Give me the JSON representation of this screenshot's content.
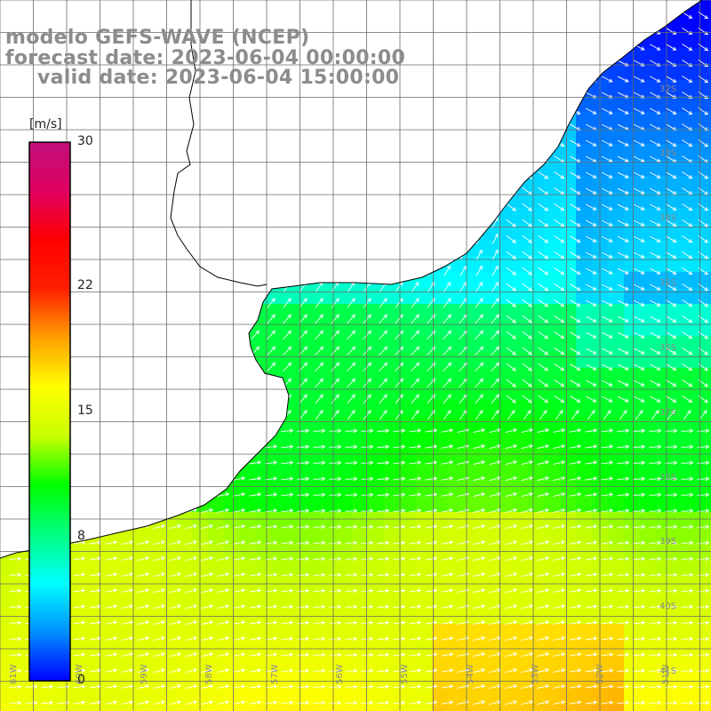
{
  "title": {
    "model": "modelo GEFS-WAVE (NCEP)",
    "forecast": "forecast date: 2023-06-04 00:00:00",
    "valid": "valid date: 2023-06-04 15:00:00"
  },
  "colorbar": {
    "unit": "[m/s]",
    "ticks": [
      {
        "value": 30,
        "label": "30"
      },
      {
        "value": 22,
        "label": "22"
      },
      {
        "value": 15,
        "label": "15"
      },
      {
        "value": 8,
        "label": "8"
      },
      {
        "value": 0,
        "label": "0"
      }
    ],
    "range": [
      0,
      30
    ],
    "stops": [
      "#0000ff",
      "#0090ff",
      "#00ffff",
      "#00ff80",
      "#00ff00",
      "#c8ff00",
      "#ffff00",
      "#ffa000",
      "#ff2000",
      "#ff0000",
      "#e00060",
      "#c0107a"
    ]
  },
  "map": {
    "lat_labels": [
      "32S",
      "33S",
      "34S",
      "35S",
      "36S",
      "37S",
      "38S",
      "39S",
      "40S",
      "41S"
    ],
    "lon_labels": [
      "61W",
      "60W",
      "59W",
      "58W",
      "57W",
      "56W",
      "55W",
      "54W",
      "53W",
      "52W",
      "51W"
    ],
    "land_color": "#ffffff",
    "coast_color": "#000000",
    "grid_color": "#6a6a6a",
    "arrow_color": "#ffffff"
  }
}
